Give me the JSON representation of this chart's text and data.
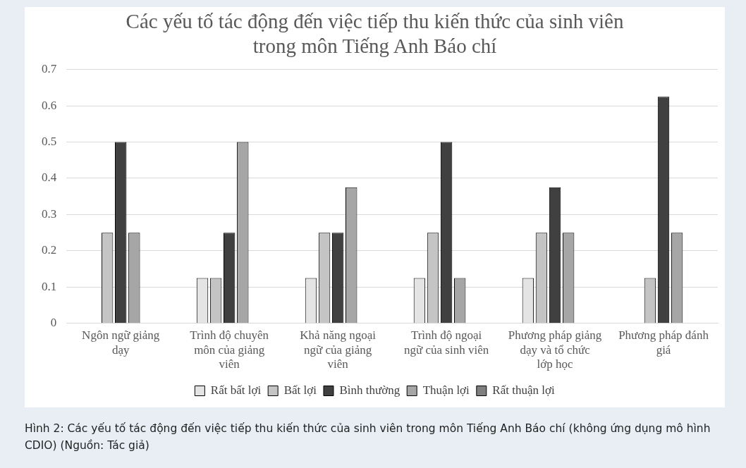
{
  "chart_data": {
    "type": "bar",
    "title": "Các yếu tố tác động đến việc tiếp thu kiến thức của sinh viên trong môn Tiếng Anh Báo chí",
    "categories": [
      "Ngôn ngữ giảng dạy",
      "Trình độ chuyên môn của giảng viên",
      "Khả năng ngoại ngữ của giảng viên",
      "Trình độ ngoại ngữ của sinh viên",
      "Phương pháp giảng dạy và tổ chức lớp học",
      "Phương pháp đánh giá"
    ],
    "series": [
      {
        "name": "Rất bất lợi",
        "color": "#e4e4e4",
        "values": [
          0,
          0.125,
          0.125,
          0.125,
          0.125,
          0
        ]
      },
      {
        "name": "Bất lợi",
        "color": "#c4c4c4",
        "values": [
          0.25,
          0.125,
          0.25,
          0.25,
          0.25,
          0.125
        ]
      },
      {
        "name": "Bình thường",
        "color": "#404040",
        "values": [
          0.5,
          0.25,
          0.25,
          0.5,
          0.375,
          0.625
        ]
      },
      {
        "name": "Thuận lợi",
        "color": "#a6a6a6",
        "values": [
          0.25,
          0.5,
          0.375,
          0.125,
          0.25,
          0.25
        ]
      },
      {
        "name": "Rất thuận lợi",
        "color": "#7f7f7f",
        "values": [
          0,
          0,
          0,
          0,
          0,
          0
        ]
      }
    ],
    "ylim": [
      0,
      0.7
    ],
    "yticks": [
      0,
      0.1,
      0.2,
      0.3,
      0.4,
      0.5,
      0.6,
      0.7
    ],
    "grid": "y",
    "legend": "bottom",
    "annotations": [
      "Hình 2: Các yếu tố tác động đến việc tiếp thu kiến thức của sinh viên trong môn Tiếng Anh Báo chí (không ứng dụng mô hình CDIO) (Nguồn: Tác giả)"
    ]
  }
}
